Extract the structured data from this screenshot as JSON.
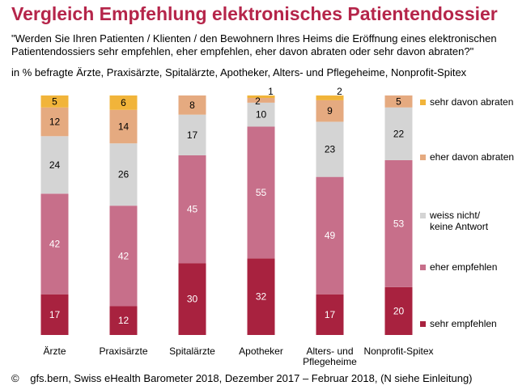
{
  "header": {
    "title": "Vergleich Empfehlung elektronisches Patientendossier",
    "question": "\"Werden Sie Ihren Patienten / Klienten / den Bewohnern Ihres Heims die Eröffnung eines elektronischen Patientendossiers sehr empfehlen, eher empfehlen, eher davon abraten oder sehr davon abraten?\"",
    "subtitle": "in % befragte Ärzte, Praxisärzte, Spitalärzte, Apotheker, Alters- und Pflegeheime, Nonprofit-Spitex"
  },
  "footer": {
    "copyright": "©",
    "source": "gfs.bern, Swiss eHealth Barometer 2018, Dezember 2017 – Februar 2018, (N siehe Einleitung)"
  },
  "chart_data": {
    "type": "bar",
    "stacked": true,
    "percent": true,
    "title": "Vergleich Empfehlung elektronisches Patientendossier",
    "categories": [
      [
        "Ärzte"
      ],
      [
        "Praxisärzte"
      ],
      [
        "Spitalärzte"
      ],
      [
        "Apotheker"
      ],
      [
        "Alters- und",
        "Pflegeheime"
      ],
      [
        "Nonprofit-Spitex"
      ]
    ],
    "ylim": [
      0,
      100
    ],
    "series": [
      {
        "name": "sehr empfehlen",
        "color": "#a8223f",
        "label_color": "#ffffff",
        "values": [
          17,
          12,
          30,
          32,
          17,
          20
        ]
      },
      {
        "name": "eher empfehlen",
        "color": "#c76f8a",
        "label_color": "#ffffff",
        "values": [
          42,
          42,
          45,
          55,
          49,
          53
        ]
      },
      {
        "name": "weiss nicht/keine Antwort",
        "color": "#d4d4d4",
        "label_color": "#000000",
        "values": [
          24,
          26,
          17,
          10,
          23,
          22
        ]
      },
      {
        "name": "eher davon abraten",
        "color": "#e5aa80",
        "label_color": "#000000",
        "values": [
          12,
          14,
          8,
          2,
          9,
          5
        ]
      },
      {
        "name": "sehr davon abraten",
        "color": "#f1b43a",
        "label_color": "#000000",
        "values": [
          5,
          6,
          0,
          1,
          2,
          0
        ]
      }
    ]
  }
}
